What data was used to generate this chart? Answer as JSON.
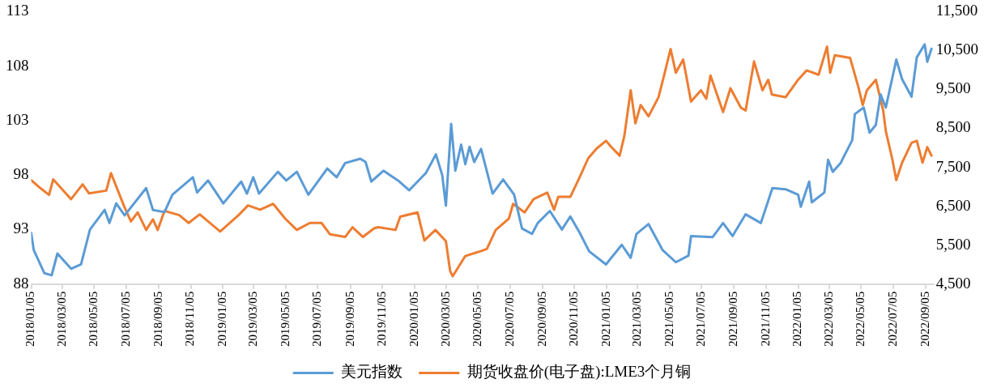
{
  "chart_data": {
    "type": "line",
    "legend": "bottom",
    "grid": false,
    "marker": "none",
    "line_style": "solid",
    "xlim": [
      "2018-01-05",
      "2022-09-20"
    ],
    "xticks": [
      {
        "value": "2018-01-05",
        "label": "2018/01/05"
      },
      {
        "value": "2018-03-05",
        "label": "2018/03/05"
      },
      {
        "value": "2018-05-05",
        "label": "2018/05/05"
      },
      {
        "value": "2018-07-05",
        "label": "2018/07/05"
      },
      {
        "value": "2018-09-05",
        "label": "2018/09/05"
      },
      {
        "value": "2018-11-05",
        "label": "2018/11/05"
      },
      {
        "value": "2019-01-05",
        "label": "2019/01/05"
      },
      {
        "value": "2019-03-05",
        "label": "2019/03/05"
      },
      {
        "value": "2019-05-05",
        "label": "2019/05/05"
      },
      {
        "value": "2019-07-05",
        "label": "2019/07/05"
      },
      {
        "value": "2019-09-05",
        "label": "2019/09/05"
      },
      {
        "value": "2019-11-05",
        "label": "2019/11/05"
      },
      {
        "value": "2020-01-05",
        "label": "2020/01/05"
      },
      {
        "value": "2020-03-05",
        "label": "2020/03/05"
      },
      {
        "value": "2020-05-05",
        "label": "2020/05/05"
      },
      {
        "value": "2020-07-05",
        "label": "2020/07/05"
      },
      {
        "value": "2020-09-05",
        "label": "2020/09/05"
      },
      {
        "value": "2020-11-05",
        "label": "2020/11/05"
      },
      {
        "value": "2021-01-05",
        "label": "2021/01/05"
      },
      {
        "value": "2021-03-05",
        "label": "2021/03/05"
      },
      {
        "value": "2021-05-05",
        "label": "2021/05/05"
      },
      {
        "value": "2021-07-05",
        "label": "2021/07/05"
      },
      {
        "value": "2021-09-05",
        "label": "2021/09/05"
      },
      {
        "value": "2021-11-05",
        "label": "2021/11/05"
      },
      {
        "value": "2022-01-05",
        "label": "2022/01/05"
      },
      {
        "value": "2022-03-05",
        "label": "2022/03/05"
      },
      {
        "value": "2022-05-05",
        "label": "2022/05/05"
      },
      {
        "value": "2022-07-05",
        "label": "2022/07/05"
      },
      {
        "value": "2022-09-05",
        "label": "2022/09/05"
      }
    ],
    "ylim": [
      88,
      113
    ],
    "yticks": [
      88,
      93,
      98,
      103,
      108,
      113
    ],
    "y2lim": [
      4500,
      11500
    ],
    "y2ticks": [
      {
        "value": 4500,
        "label": "4,500"
      },
      {
        "value": 5500,
        "label": "5,500"
      },
      {
        "value": 6500,
        "label": "6,500"
      },
      {
        "value": 7500,
        "label": "7,500"
      },
      {
        "value": 8500,
        "label": "8,500"
      },
      {
        "value": 9500,
        "label": "9,500"
      },
      {
        "value": 10500,
        "label": "10,500"
      },
      {
        "value": 11500,
        "label": "11,500"
      }
    ],
    "series": [
      {
        "name": "美元指数",
        "color": "#5b9bd5",
        "x": [
          "2018-01-05",
          "2018-01-10",
          "2018-01-30",
          "2018-02-13",
          "2018-02-24",
          "2018-03-22",
          "2018-04-10",
          "2018-04-27",
          "2018-05-25",
          "2018-06-03",
          "2018-06-16",
          "2018-07-02",
          "2018-08-12",
          "2018-08-25",
          "2018-09-16",
          "2018-10-01",
          "2018-11-09",
          "2018-11-17",
          "2018-12-08",
          "2019-01-06",
          "2019-02-09",
          "2019-02-20",
          "2019-03-04",
          "2019-03-15",
          "2019-04-20",
          "2019-05-06",
          "2019-05-26",
          "2019-06-17",
          "2019-07-23",
          "2019-08-10",
          "2019-08-26",
          "2019-09-24",
          "2019-10-04",
          "2019-10-15",
          "2019-11-07",
          "2019-12-05",
          "2019-12-26",
          "2020-01-27",
          "2020-02-15",
          "2020-02-27",
          "2020-03-05",
          "2020-03-15",
          "2020-03-23",
          "2020-04-03",
          "2020-04-11",
          "2020-04-19",
          "2020-04-28",
          "2020-05-11",
          "2020-06-02",
          "2020-06-22",
          "2020-07-13",
          "2020-07-28",
          "2020-08-16",
          "2020-08-27",
          "2020-09-19",
          "2020-10-12",
          "2020-10-28",
          "2020-11-15",
          "2020-12-03",
          "2021-01-04",
          "2021-02-03",
          "2021-02-20",
          "2021-03-03",
          "2021-03-26",
          "2021-04-22",
          "2021-05-17",
          "2021-06-10",
          "2021-06-15",
          "2021-07-26",
          "2021-08-15",
          "2021-09-02",
          "2021-09-27",
          "2021-10-26",
          "2021-11-17",
          "2021-12-12",
          "2022-01-05",
          "2022-01-10",
          "2022-01-26",
          "2022-01-31",
          "2022-02-24",
          "2022-03-03",
          "2022-03-12",
          "2022-03-27",
          "2022-04-01",
          "2022-04-18",
          "2022-04-23",
          "2022-05-10",
          "2022-05-21",
          "2022-06-02",
          "2022-06-11",
          "2022-06-21",
          "2022-07-11",
          "2022-07-22",
          "2022-08-09",
          "2022-08-19",
          "2022-09-03",
          "2022-09-08",
          "2022-09-16"
        ],
        "values": [
          92.7,
          91.1,
          89.0,
          88.8,
          90.8,
          89.4,
          89.8,
          93.0,
          94.8,
          93.6,
          95.4,
          94.3,
          96.8,
          94.8,
          94.6,
          96.2,
          97.8,
          96.4,
          97.5,
          95.4,
          97.4,
          96.3,
          97.8,
          96.3,
          98.3,
          97.5,
          98.3,
          96.2,
          98.6,
          97.8,
          99.1,
          99.5,
          99.2,
          97.4,
          98.4,
          97.5,
          96.6,
          98.2,
          99.9,
          98.0,
          95.2,
          102.7,
          98.4,
          100.8,
          99.0,
          100.6,
          99.2,
          100.4,
          96.3,
          97.6,
          96.2,
          93.1,
          92.6,
          93.6,
          94.7,
          93.0,
          94.2,
          92.7,
          91.0,
          89.8,
          91.6,
          90.4,
          92.6,
          93.5,
          91.1,
          90.0,
          90.6,
          92.4,
          92.3,
          93.6,
          92.4,
          94.4,
          93.6,
          96.8,
          96.7,
          96.2,
          95.1,
          97.4,
          95.5,
          96.4,
          99.4,
          98.3,
          99.1,
          99.6,
          101.2,
          103.6,
          104.2,
          101.9,
          102.6,
          105.4,
          104.2,
          108.6,
          106.8,
          105.2,
          108.8,
          110.0,
          108.4,
          109.6
        ]
      },
      {
        "name": "期货收盘价(电子盘):LME3个月铜",
        "color": "#ed7d31",
        "axis": "y2",
        "x": [
          "2018-01-05",
          "2018-01-22",
          "2018-02-08",
          "2018-02-16",
          "2018-03-22",
          "2018-04-13",
          "2018-04-25",
          "2018-05-28",
          "2018-06-06",
          "2018-07-01",
          "2018-07-14",
          "2018-07-27",
          "2018-08-12",
          "2018-08-25",
          "2018-09-03",
          "2018-09-16",
          "2018-10-14",
          "2018-11-01",
          "2018-11-22",
          "2018-12-31",
          "2019-02-04",
          "2019-02-22",
          "2019-03-17",
          "2019-04-11",
          "2019-05-04",
          "2019-05-26",
          "2019-06-20",
          "2019-07-12",
          "2019-07-28",
          "2019-08-26",
          "2019-09-09",
          "2019-09-29",
          "2019-10-20",
          "2019-10-28",
          "2019-11-30",
          "2019-12-09",
          "2020-01-11",
          "2020-01-24",
          "2020-02-14",
          "2020-03-05",
          "2020-03-13",
          "2020-03-18",
          "2020-04-11",
          "2020-05-07",
          "2020-05-22",
          "2020-06-08",
          "2020-07-03",
          "2020-07-11",
          "2020-08-02",
          "2020-08-19",
          "2020-09-14",
          "2020-09-27",
          "2020-10-05",
          "2020-10-28",
          "2020-11-16",
          "2020-12-01",
          "2020-12-17",
          "2021-01-04",
          "2021-01-14",
          "2021-01-30",
          "2021-02-08",
          "2021-02-20",
          "2021-03-01",
          "2021-03-11",
          "2021-03-26",
          "2021-04-14",
          "2021-04-25",
          "2021-05-07",
          "2021-05-17",
          "2021-05-31",
          "2021-06-15",
          "2021-07-04",
          "2021-07-14",
          "2021-07-22",
          "2021-08-15",
          "2021-08-29",
          "2021-09-18",
          "2021-09-27",
          "2021-10-13",
          "2021-10-29",
          "2021-11-09",
          "2021-11-16",
          "2021-12-12",
          "2022-01-05",
          "2022-01-21",
          "2022-02-13",
          "2022-03-01",
          "2022-03-07",
          "2022-03-16",
          "2022-04-14",
          "2022-04-30",
          "2022-05-08",
          "2022-05-16",
          "2022-06-02",
          "2022-06-16",
          "2022-06-21",
          "2022-07-03",
          "2022-07-11",
          "2022-07-22",
          "2022-08-09",
          "2022-08-19",
          "2022-08-30",
          "2022-09-08",
          "2022-09-16"
        ],
        "values": [
          7170,
          6970,
          6790,
          7190,
          6680,
          7060,
          6830,
          6900,
          7350,
          6500,
          6110,
          6340,
          5890,
          6160,
          5890,
          6380,
          6270,
          6070,
          6290,
          5850,
          6270,
          6520,
          6410,
          6560,
          6180,
          5890,
          6070,
          6070,
          5780,
          5710,
          5960,
          5710,
          5930,
          5960,
          5890,
          6230,
          6340,
          5620,
          5890,
          5600,
          4840,
          4700,
          5220,
          5330,
          5400,
          5890,
          6180,
          6560,
          6340,
          6680,
          6850,
          6410,
          6740,
          6740,
          7280,
          7730,
          7980,
          8180,
          8020,
          7800,
          8310,
          9480,
          8630,
          9100,
          8810,
          9300,
          9880,
          10540,
          9930,
          10270,
          9190,
          9480,
          9260,
          9860,
          8920,
          9530,
          9030,
          8960,
          10220,
          9480,
          9750,
          9370,
          9300,
          9750,
          9990,
          9880,
          10600,
          9930,
          10380,
          10310,
          9550,
          9100,
          9480,
          9750,
          8960,
          8430,
          7730,
          7170,
          7620,
          8130,
          8180,
          7620,
          8020,
          7800
        ]
      }
    ]
  }
}
